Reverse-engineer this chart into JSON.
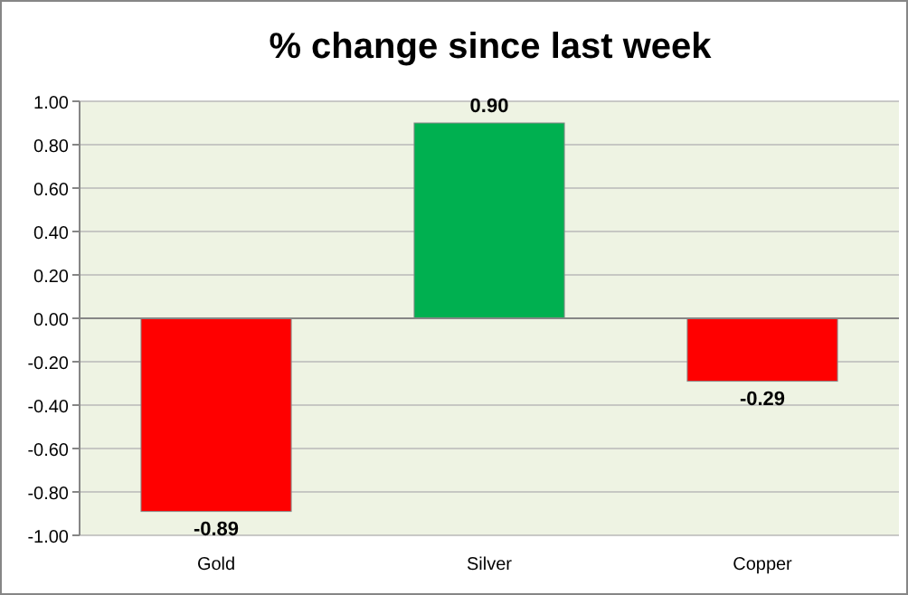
{
  "chart_data": {
    "type": "bar",
    "title": "% change since last week",
    "categories": [
      "Gold",
      "Silver",
      "Copper"
    ],
    "values": [
      -0.89,
      0.9,
      -0.29
    ],
    "colors": [
      "#ff0000",
      "#00b050",
      "#ff0000"
    ],
    "value_labels": [
      "-0.89",
      "0.90",
      "-0.29"
    ],
    "ylim": [
      -1,
      1
    ],
    "yticks": [
      {
        "value": -1,
        "label": "-1.00"
      },
      {
        "value": -0.8,
        "label": "-0.80"
      },
      {
        "value": -0.6,
        "label": "-0.60"
      },
      {
        "value": -0.4,
        "label": "-0.40"
      },
      {
        "value": -0.2,
        "label": "-0.20"
      },
      {
        "value": 0,
        "label": "0.00"
      },
      {
        "value": 0.2,
        "label": "0.20"
      },
      {
        "value": 0.4,
        "label": "0.40"
      },
      {
        "value": 0.6,
        "label": "0.60"
      },
      {
        "value": 0.8,
        "label": "0.80"
      },
      {
        "value": 1,
        "label": "1.00"
      }
    ],
    "grid": "y"
  }
}
